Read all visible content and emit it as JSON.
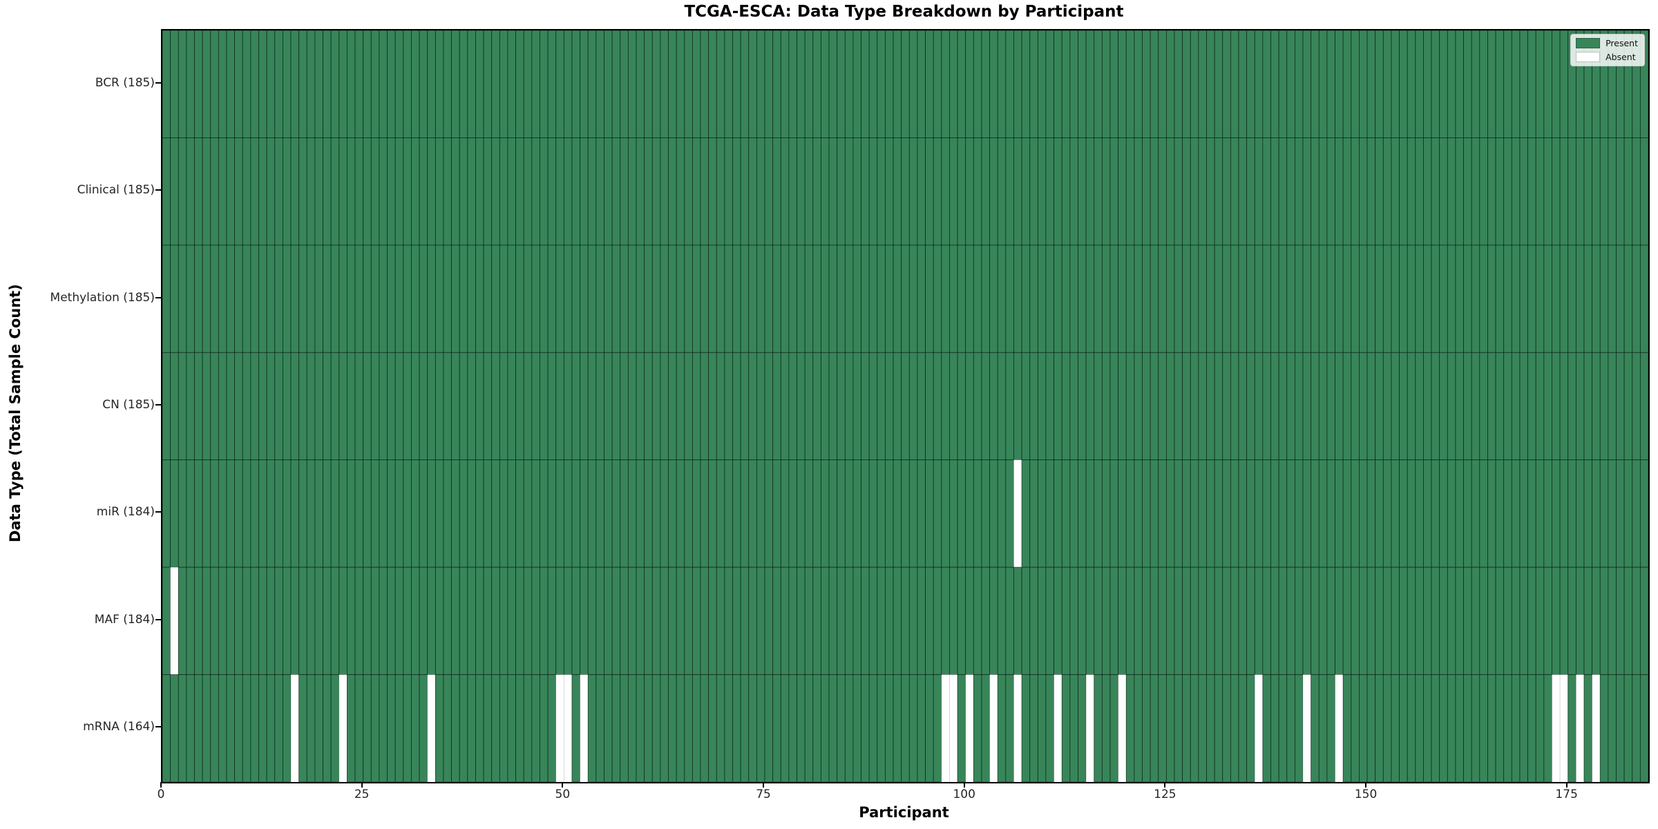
{
  "title": "TCGA-ESCA: Data Type Breakdown by Participant",
  "chart_data": {
    "type": "heatmap",
    "title": "TCGA-ESCA: Data Type Breakdown by Participant",
    "xlabel": "Participant",
    "ylabel": "Data Type (Total Sample Count)",
    "n_participants": 185,
    "x_ticks": [
      0,
      25,
      50,
      75,
      100,
      125,
      150,
      175
    ],
    "x_range": [
      0,
      185
    ],
    "grid": false,
    "legend_position": "upper right",
    "cell_states": {
      "present": 1,
      "absent": 0
    },
    "rows": [
      {
        "label": "BCR (185)",
        "data_type": "BCR",
        "present_count": 185,
        "absent_participants": []
      },
      {
        "label": "Clinical (185)",
        "data_type": "Clinical",
        "present_count": 185,
        "absent_participants": []
      },
      {
        "label": "Methylation (185)",
        "data_type": "Methylation",
        "present_count": 185,
        "absent_participants": []
      },
      {
        "label": "CN (185)",
        "data_type": "CN",
        "present_count": 185,
        "absent_participants": []
      },
      {
        "label": "miR (184)",
        "data_type": "miR",
        "present_count": 184,
        "absent_participants": [
          106
        ]
      },
      {
        "label": "MAF (184)",
        "data_type": "MAF",
        "present_count": 184,
        "absent_participants": [
          1
        ]
      },
      {
        "label": "mRNA (164)",
        "data_type": "mRNA",
        "present_count": 164,
        "absent_participants": [
          16,
          22,
          33,
          49,
          50,
          52,
          97,
          98,
          100,
          103,
          106,
          111,
          115,
          119,
          136,
          142,
          146,
          173,
          174,
          176,
          178
        ]
      }
    ],
    "legend": [
      {
        "label": "Present",
        "color": "#38855A"
      },
      {
        "label": "Absent",
        "color": "#ffffff"
      }
    ],
    "colors": {
      "present": "#38855A",
      "absent": "#ffffff",
      "cell_edge": "rgba(5,25,15,0.75)",
      "absent_edge": "rgba(130,130,130,0.45)",
      "spine": "#000000"
    }
  }
}
